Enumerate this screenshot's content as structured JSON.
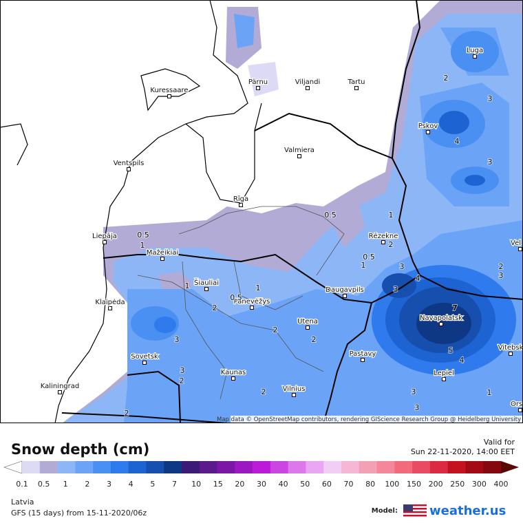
{
  "map": {
    "cities": [
      "Pärnu",
      "Viljandi",
      "Tartu",
      "Kuressaare",
      "Pskov",
      "Luga",
      "Valmiera",
      "Ventspils",
      "Rīga",
      "Liepāja",
      "Rēzekne",
      "Mažeikiai",
      "Šiauliai",
      "Klaipėda",
      "Panevėžys",
      "Daugavpils",
      "Navapolatsk",
      "Utena",
      "Vitebsk",
      "Sovetsk",
      "Pastavy",
      "Kaunas",
      "Lepiel",
      "Kaliningrad",
      "Vilnius",
      "Vel",
      "Ors"
    ],
    "contour_labels": [
      "0.5",
      "1",
      "0.5",
      "1",
      "2",
      "0.5",
      "1",
      "3",
      "4",
      "3",
      "7",
      "2",
      "3",
      "4",
      "3",
      "2",
      "3",
      "5",
      "4",
      "1",
      "3",
      "3",
      "1",
      "1",
      "2",
      "0.5",
      "3",
      "2",
      "2",
      "3",
      "2",
      "2",
      "2"
    ],
    "attribution": "Map data © OpenStreetMap contributors, rendering GIScience Research Group @ Heidelberg University"
  },
  "legend": {
    "title": "Snow depth (cm)",
    "ticks": [
      "0.1",
      "0.5",
      "1",
      "2",
      "3",
      "4",
      "5",
      "7",
      "10",
      "15",
      "20",
      "30",
      "40",
      "50",
      "60",
      "70",
      "80",
      "100",
      "150",
      "200",
      "250",
      "300",
      "400"
    ],
    "colors": [
      "#ffffff",
      "#dcdaf5",
      "#b2abd6",
      "#8db6f7",
      "#6ba4f6",
      "#4a8ff2",
      "#2f7aec",
      "#1d63d2",
      "#164fae",
      "#0e3784",
      "#3c1a78",
      "#5c1a8c",
      "#7c16a6",
      "#9c18c2",
      "#bc1ad8",
      "#cc44e2",
      "#dc78ea",
      "#eaa6f2",
      "#f2cef6",
      "#f6b6d6",
      "#f4a0b4",
      "#f4889a",
      "#f26a7c",
      "#ea4a62",
      "#dc2a42",
      "#c4121e",
      "#a40a14",
      "#84080e",
      "#5a0a04"
    ]
  },
  "valid": {
    "label": "Valid for",
    "time": "Sun 22-11-2020, 14:00 EET"
  },
  "footer": {
    "region": "Latvia",
    "model_run": "GFS (15 days) from 15-11-2020/06z",
    "model_label": "Model:",
    "brand": "weather.us"
  }
}
